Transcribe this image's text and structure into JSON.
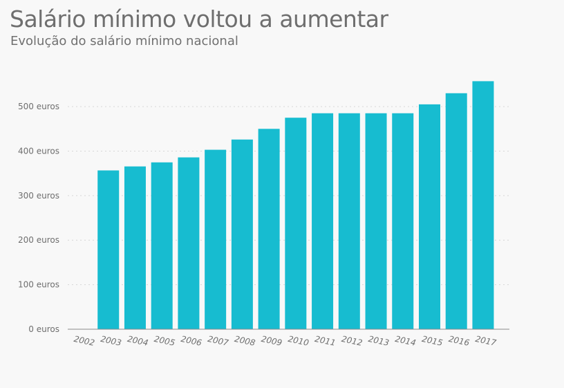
{
  "chart_data": {
    "type": "bar",
    "title": "Salário mínimo voltou a aumentar",
    "subtitle": "Evolução do salário mínimo nacional",
    "xlabel": "",
    "ylabel": "",
    "categories": [
      "2002",
      "2003",
      "2004",
      "2005",
      "2006",
      "2007",
      "2008",
      "2009",
      "2010",
      "2011",
      "2012",
      "2013",
      "2014",
      "2015",
      "2016",
      "2017"
    ],
    "values": [
      null,
      356.6,
      365.6,
      374.7,
      385.9,
      403,
      426,
      450,
      475,
      485,
      485,
      485,
      485,
      505,
      530,
      557
    ],
    "ylim": [
      0,
      557
    ],
    "yticks": [
      0,
      100,
      200,
      300,
      400,
      500
    ],
    "ytick_labels": [
      "0 euros",
      "100 euros",
      "200 euros",
      "300 euros",
      "400 euros",
      "500 euros"
    ],
    "grid": true,
    "bar_color": "#17bcd0"
  }
}
